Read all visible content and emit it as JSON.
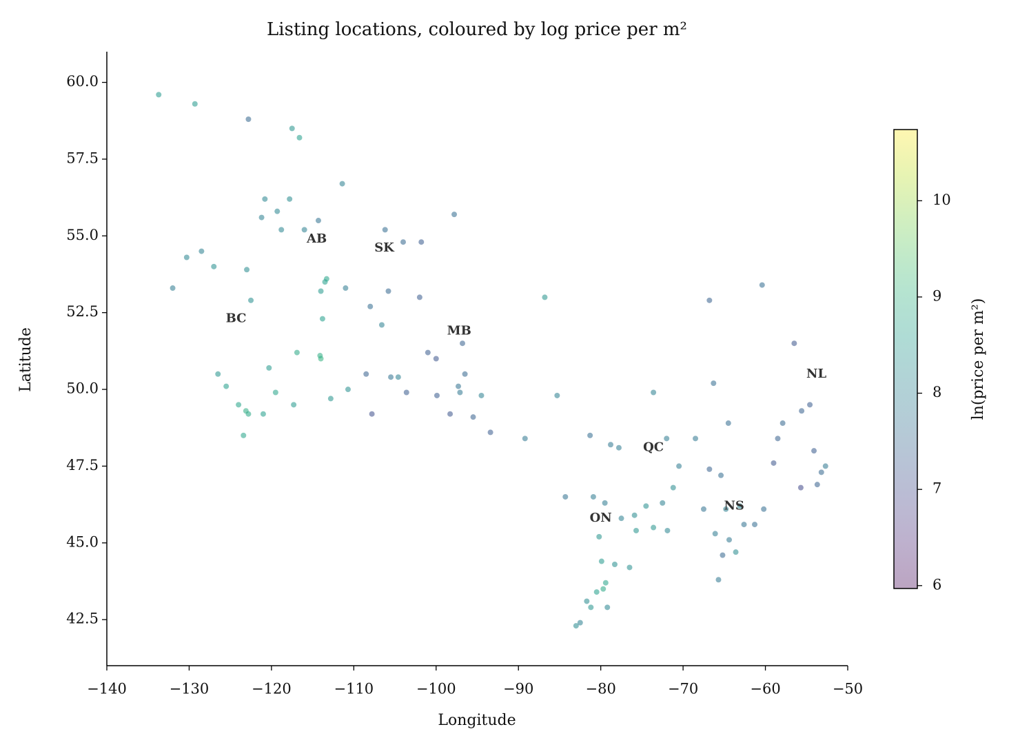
{
  "chart_data": {
    "type": "scatter",
    "title": "Listing locations, coloured by log price per m²",
    "x_label": "Longitude",
    "y_label": "Latitude",
    "colorbar_label": "ln(price per m²)",
    "colormap": "viridis",
    "alpha": 0.55,
    "xlim": [
      -140,
      -50
    ],
    "xticks": [
      {
        "value": -140,
        "label": "−140"
      },
      {
        "value": -130,
        "label": "−130"
      },
      {
        "value": -120,
        "label": "−120"
      },
      {
        "value": -110,
        "label": "−110"
      },
      {
        "value": -100,
        "label": "−100"
      },
      {
        "value": -90,
        "label": "−90"
      },
      {
        "value": -80,
        "label": "−80"
      },
      {
        "value": -70,
        "label": "−70"
      },
      {
        "value": -60,
        "label": "−60"
      },
      {
        "value": -50,
        "label": "−50"
      }
    ],
    "ylim": [
      41,
      61
    ],
    "yticks": [
      42.5,
      {
        "value": 45,
        "label": "45.0"
      },
      47.5,
      {
        "value": 50,
        "label": "50.0"
      },
      52.5,
      {
        "value": 55,
        "label": "55.0"
      },
      57.5,
      {
        "value": 60,
        "label": "60.0"
      }
    ],
    "clim": [
      5.97,
      10.74
    ],
    "cticks": [
      6,
      7,
      8,
      9,
      10
    ],
    "x": [
      -123.1,
      -123.4,
      -122.8,
      -124,
      -119.5,
      -117.3,
      -121,
      -120.3,
      -125.5,
      -126.5,
      -122.5,
      -123,
      -127,
      -128.5,
      -130.3,
      -132,
      -122.8,
      -120.8,
      -117.8,
      -116,
      -117.5,
      -116.6,
      -133.7,
      -129.3,
      -121.2,
      -119.3,
      -118.8,
      -113.5,
      -114,
      -114.1,
      -113.8,
      -112.8,
      -110.7,
      -113.3,
      -114,
      -111,
      -114.3,
      -111.4,
      -116.9,
      -106.6,
      -104.6,
      -105.5,
      -108,
      -102,
      -105.8,
      -108.5,
      -103.6,
      -107.8,
      -104,
      -106.2,
      -101,
      -97.1,
      -97.3,
      -96.5,
      -99.9,
      -98.3,
      -97.8,
      -101.8,
      -95.5,
      -100,
      -96.8,
      -94.5,
      -79.4,
      -79.7,
      -80.5,
      -81.2,
      -83,
      -82.5,
      -79.9,
      -75.7,
      -76.5,
      -78.3,
      -80.9,
      -84.3,
      -89.2,
      -79.5,
      -81.3,
      -77.5,
      -80.2,
      -81.7,
      -79.2,
      -93.4,
      -86.8,
      -85.3,
      -73.6,
      -71.2,
      -72.5,
      -71.9,
      -70.5,
      -68.5,
      -72,
      -74.5,
      -66.8,
      -78.8,
      -77.8,
      -64.5,
      -66.3,
      -73.6,
      -75.9,
      -66.1,
      -64.8,
      -63.6,
      -63.1,
      -65.7,
      -61.3,
      -60.2,
      -64.4,
      -67.5,
      -65.4,
      -62.6,
      -65.2,
      -66.8,
      -52.7,
      -53.2,
      -57.9,
      -55.6,
      -54.6,
      -58.5,
      -56.5,
      -60.4,
      -54.1,
      -53.7,
      -59,
      -55.7
    ],
    "y": [
      49.3,
      48.5,
      49.2,
      49.5,
      49.9,
      49.5,
      49.2,
      50.7,
      50.1,
      50.5,
      52.9,
      53.9,
      54,
      54.5,
      54.3,
      53.3,
      58.8,
      56.2,
      56.2,
      55.2,
      58.5,
      58.2,
      59.6,
      59.3,
      55.6,
      55.8,
      55.2,
      53.5,
      51,
      51.1,
      52.3,
      49.7,
      50,
      53.6,
      53.2,
      53.3,
      55.5,
      56.7,
      51.2,
      52.1,
      50.4,
      50.4,
      52.7,
      53,
      53.2,
      50.5,
      49.9,
      49.2,
      54.8,
      55.2,
      51.2,
      49.9,
      50.1,
      50.5,
      49.8,
      49.2,
      55.7,
      54.8,
      49.1,
      51,
      51.5,
      49.8,
      43.7,
      43.5,
      43.4,
      42.9,
      42.3,
      42.4,
      44.4,
      45.4,
      44.2,
      44.3,
      46.5,
      46.5,
      48.4,
      46.3,
      48.5,
      45.8,
      45.2,
      43.1,
      42.9,
      48.6,
      53,
      49.8,
      45.5,
      46.8,
      46.3,
      45.4,
      47.5,
      48.4,
      48.4,
      46.2,
      52.9,
      48.2,
      48.1,
      48.9,
      50.2,
      49.9,
      45.9,
      45.3,
      46.1,
      44.7,
      46.2,
      43.8,
      45.6,
      46.1,
      45.1,
      46.1,
      47.2,
      45.6,
      44.6,
      47.4,
      47.5,
      47.3,
      48.9,
      49.3,
      49.5,
      48.4,
      51.5,
      53.4,
      48,
      46.9,
      47.6,
      46.8
    ],
    "color_values": [
      8.9,
      8.7,
      8.8,
      8.7,
      8.7,
      8.5,
      8.6,
      8.5,
      8.6,
      8.4,
      8.3,
      8.2,
      8.3,
      8,
      8.1,
      7.9,
      7.5,
      8.1,
      8.2,
      8,
      8.4,
      8.6,
      8.5,
      8.5,
      8,
      8.1,
      8.1,
      8.6,
      9,
      8.9,
      8.6,
      8.4,
      8.3,
      8.7,
      8.5,
      7.9,
      7.7,
      8,
      8.8,
      8,
      8,
      7.7,
      7.6,
      7.3,
      7.5,
      7.4,
      7.3,
      7.1,
      7.5,
      7.6,
      7.3,
      7.8,
      7.7,
      7.5,
      7.3,
      7.2,
      7.6,
      7.3,
      7.4,
      7.2,
      7.4,
      8,
      8.7,
      8.8,
      8.6,
      8.4,
      8.2,
      8,
      8.5,
      8.4,
      8.3,
      8.3,
      7.9,
      7.7,
      7.8,
      7.9,
      7.6,
      8,
      8.4,
      8.2,
      8.1,
      7.3,
      8.4,
      8,
      8.4,
      8.2,
      8,
      8.1,
      7.9,
      7.8,
      7.9,
      8.3,
      7.4,
      7.8,
      7.9,
      7.6,
      7.6,
      8,
      8.2,
      7.9,
      8,
      8.2,
      8.1,
      7.8,
      7.6,
      7.6,
      7.8,
      7.7,
      7.6,
      7.7,
      7.5,
      7.4,
      7.8,
      7.5,
      7.5,
      7.4,
      7.3,
      7.4,
      7.2,
      7.6,
      7.3,
      7.4,
      7.2,
      7
    ],
    "annotations": [
      {
        "text": "BC",
        "x": -124.3,
        "y": 52.3
      },
      {
        "text": "AB",
        "x": -114.5,
        "y": 54.9
      },
      {
        "text": "SK",
        "x": -106.3,
        "y": 54.6
      },
      {
        "text": "MB",
        "x": -97.2,
        "y": 51.9
      },
      {
        "text": "ON",
        "x": -80,
        "y": 45.8
      },
      {
        "text": "QC",
        "x": -73.6,
        "y": 48.1
      },
      {
        "text": "NS",
        "x": -63.8,
        "y": 46.2
      },
      {
        "text": "NL",
        "x": -53.8,
        "y": 50.5
      }
    ]
  }
}
